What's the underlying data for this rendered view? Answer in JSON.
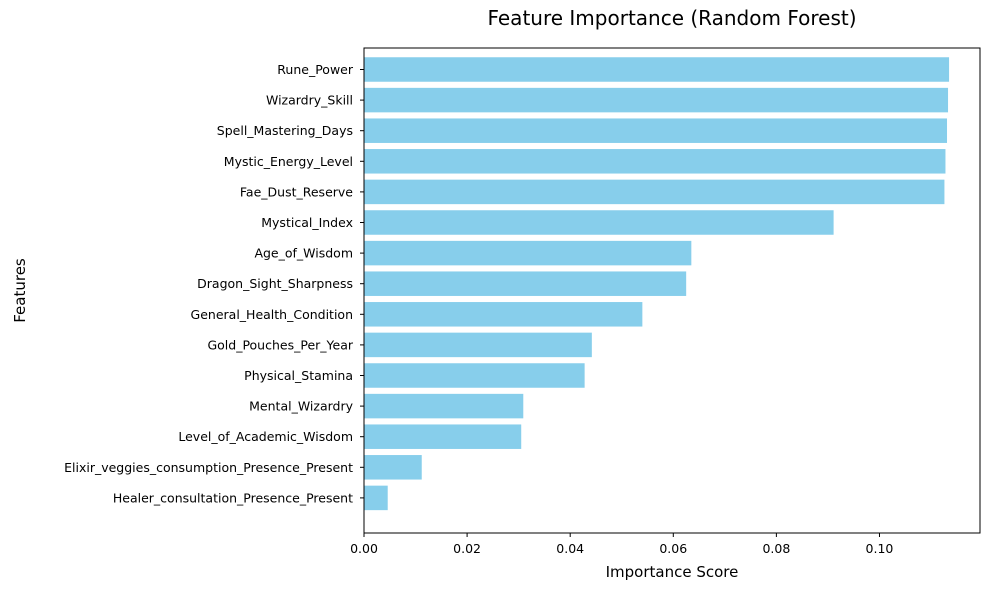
{
  "chart_data": {
    "type": "bar",
    "orientation": "horizontal",
    "title": "Feature Importance (Random Forest)",
    "xlabel": "Importance Score",
    "ylabel": "Features",
    "xlim": [
      0,
      0.1195
    ],
    "x_ticks": [
      0.0,
      0.02,
      0.04,
      0.06,
      0.08,
      0.1
    ],
    "x_tick_labels": [
      "0.00",
      "0.02",
      "0.04",
      "0.06",
      "0.08",
      "0.10"
    ],
    "grid": false,
    "bar_color": "#87CEEB",
    "categories": [
      "Rune_Power",
      "Wizardry_Skill",
      "Spell_Mastering_Days",
      "Mystic_Energy_Level",
      "Fae_Dust_Reserve",
      "Mystical_Index",
      "Age_of_Wisdom",
      "Dragon_Sight_Sharpness",
      "General_Health_Condition",
      "Gold_Pouches_Per_Year",
      "Physical_Stamina",
      "Mental_Wizardry",
      "Level_of_Academic_Wisdom",
      "Elixir_veggies_consumption_Presence_Present",
      "Healer_consultation_Presence_Present"
    ],
    "values": [
      0.1135,
      0.1133,
      0.1131,
      0.1128,
      0.1126,
      0.0911,
      0.0635,
      0.0625,
      0.054,
      0.0442,
      0.0428,
      0.0309,
      0.0305,
      0.0112,
      0.0046
    ]
  }
}
